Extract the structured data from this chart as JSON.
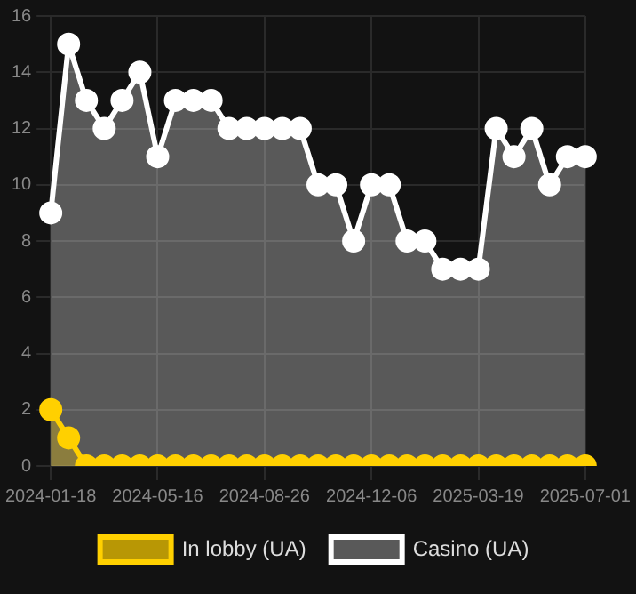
{
  "chart_data": {
    "type": "area",
    "categories": [
      "2024-01-18",
      null,
      null,
      null,
      null,
      null,
      "2024-05-16",
      null,
      null,
      null,
      null,
      null,
      "2024-08-26",
      null,
      null,
      null,
      null,
      null,
      "2024-12-06",
      null,
      null,
      null,
      null,
      null,
      "2025-03-19",
      null,
      null,
      null,
      null,
      null,
      "2025-07-01"
    ],
    "series": [
      {
        "name": "In lobby (UA)",
        "color": "#ffd000",
        "values": [
          2,
          1,
          0,
          0,
          0,
          0,
          0,
          0,
          0,
          0,
          0,
          0,
          0,
          0,
          0,
          0,
          0,
          0,
          0,
          0,
          0,
          0,
          0,
          0,
          0,
          0,
          0,
          0,
          0,
          0,
          0
        ]
      },
      {
        "name": "Casino (UA)",
        "color": "#ffffff",
        "values": [
          9,
          15,
          13,
          12,
          13,
          14,
          11,
          13,
          13,
          13,
          12,
          12,
          12,
          12,
          12,
          10,
          10,
          8,
          10,
          10,
          8,
          8,
          7,
          7,
          7,
          12,
          11,
          12,
          10,
          11,
          11
        ]
      }
    ],
    "ylim": [
      0,
      16
    ],
    "yticks": [
      0,
      2,
      4,
      6,
      8,
      10,
      12,
      14,
      16
    ],
    "grid": true,
    "legend": "bottom",
    "marker": "circle",
    "line_style": "solid"
  }
}
